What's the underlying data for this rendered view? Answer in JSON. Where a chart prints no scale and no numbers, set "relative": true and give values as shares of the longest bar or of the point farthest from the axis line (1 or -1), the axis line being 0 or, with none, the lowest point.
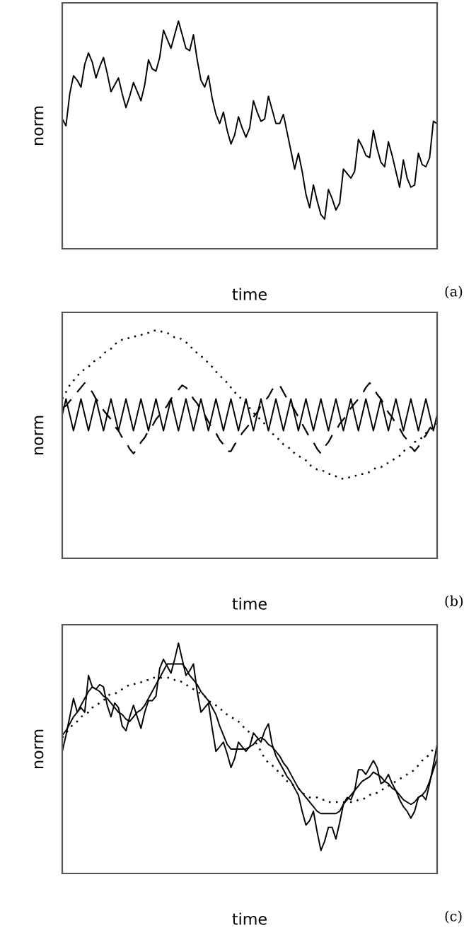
{
  "chart_data": [
    {
      "type": "line",
      "relative": true,
      "xlabel": "time",
      "ylabel": "norm",
      "annotations": [
        "(a)"
      ],
      "categories": [
        null,
        null,
        null,
        null,
        null,
        null,
        null,
        null,
        null,
        null,
        null,
        null,
        null,
        null,
        null,
        null,
        null,
        null,
        null,
        null,
        null,
        null,
        null,
        null,
        null,
        null,
        null,
        null,
        null,
        null,
        null,
        null,
        null,
        null,
        null,
        null,
        null,
        null,
        null,
        null,
        null,
        null,
        null,
        null,
        null,
        null,
        null,
        null,
        null,
        null,
        null,
        null,
        null,
        null,
        null,
        null,
        null,
        null,
        null,
        null,
        null,
        null,
        null,
        null,
        null,
        null,
        null,
        null,
        null,
        null,
        null,
        null,
        null,
        null,
        null,
        null,
        null,
        null,
        null,
        null,
        null,
        null,
        null,
        null,
        null,
        null,
        null,
        null,
        null,
        null,
        null,
        null,
        null,
        null,
        null,
        null,
        null,
        null,
        null,
        null,
        null
      ],
      "series": [
        {
          "color": "#000000",
          "line_style": "solid",
          "values": [
            0.57,
            0.54,
            0.68,
            0.76,
            0.74,
            0.71,
            0.81,
            0.86,
            0.82,
            0.75,
            0.8,
            0.84,
            0.77,
            0.69,
            0.72,
            0.75,
            0.68,
            0.62,
            0.67,
            0.73,
            0.69,
            0.65,
            0.72,
            0.83,
            0.79,
            0.78,
            0.84,
            0.96,
            0.92,
            0.88,
            0.94,
            1.0,
            0.94,
            0.88,
            0.87,
            0.94,
            0.83,
            0.74,
            0.71,
            0.76,
            0.66,
            0.59,
            0.55,
            0.6,
            0.52,
            0.46,
            0.5,
            0.58,
            0.53,
            0.49,
            0.53,
            0.65,
            0.6,
            0.56,
            0.57,
            0.67,
            0.61,
            0.55,
            0.55,
            0.59,
            0.51,
            0.43,
            0.35,
            0.42,
            0.34,
            0.24,
            0.18,
            0.28,
            0.21,
            0.15,
            0.13,
            0.26,
            0.22,
            0.17,
            0.2,
            0.35,
            0.33,
            0.31,
            0.34,
            0.48,
            0.45,
            0.41,
            0.4,
            0.52,
            0.44,
            0.38,
            0.36,
            0.47,
            0.41,
            0.34,
            0.27,
            0.39,
            0.31,
            0.27,
            0.28,
            0.42,
            0.37,
            0.36,
            0.4,
            0.56,
            0.55
          ]
        }
      ]
    },
    {
      "type": "line",
      "relative": true,
      "xlabel": "time",
      "ylabel": "norm",
      "annotations": [
        "(b)"
      ],
      "categories": [
        null,
        null,
        null,
        null,
        null,
        null,
        null,
        null,
        null,
        null,
        null,
        null,
        null,
        null,
        null,
        null,
        null,
        null,
        null,
        null,
        null,
        null,
        null,
        null,
        null,
        null,
        null,
        null,
        null,
        null,
        null,
        null,
        null,
        null,
        null,
        null,
        null,
        null,
        null,
        null,
        null,
        null,
        null,
        null,
        null,
        null,
        null,
        null,
        null,
        null,
        null,
        null,
        null,
        null,
        null,
        null,
        null,
        null,
        null,
        null,
        null,
        null,
        null,
        null,
        null,
        null,
        null,
        null,
        null,
        null,
        null,
        null,
        null,
        null,
        null,
        null,
        null,
        null,
        null,
        null,
        null,
        null,
        null,
        null,
        null,
        null,
        null,
        null,
        null,
        null,
        null,
        null,
        null,
        null,
        null,
        null,
        null,
        null,
        null,
        null,
        null
      ],
      "series": [
        {
          "color": "#000000",
          "line_style": "solid",
          "values": [
            0.63,
            0.7,
            0.63,
            0.56,
            0.63,
            0.7,
            0.63,
            0.56,
            0.63,
            0.7,
            0.63,
            0.56,
            0.63,
            0.7,
            0.63,
            0.56,
            0.63,
            0.7,
            0.63,
            0.56,
            0.63,
            0.7,
            0.63,
            0.56,
            0.63,
            0.7,
            0.63,
            0.56,
            0.63,
            0.7,
            0.63,
            0.56,
            0.63,
            0.7,
            0.63,
            0.56,
            0.63,
            0.7,
            0.63,
            0.56,
            0.63,
            0.7,
            0.63,
            0.56,
            0.63,
            0.7,
            0.63,
            0.56,
            0.63,
            0.7,
            0.63,
            0.56,
            0.63,
            0.7,
            0.63,
            0.56,
            0.63,
            0.7,
            0.63,
            0.56,
            0.63,
            0.7,
            0.63,
            0.56,
            0.63,
            0.7,
            0.63,
            0.56,
            0.63,
            0.7,
            0.63,
            0.56,
            0.63,
            0.7,
            0.63,
            0.56,
            0.63,
            0.7,
            0.63,
            0.56,
            0.63,
            0.7,
            0.63,
            0.56,
            0.63,
            0.7,
            0.63,
            0.56,
            0.63,
            0.7,
            0.63,
            0.56,
            0.63,
            0.7,
            0.63,
            0.56,
            0.63,
            0.7,
            0.63,
            0.56,
            0.63
          ]
        },
        {
          "color": "#000000",
          "line_style": "dashed",
          "values": [
            0.66,
            0.67,
            0.69,
            0.71,
            0.73,
            0.75,
            0.77,
            0.75,
            0.73,
            0.7,
            0.68,
            0.65,
            0.63,
            0.61,
            0.58,
            0.56,
            0.53,
            0.51,
            0.48,
            0.46,
            0.48,
            0.51,
            0.53,
            0.56,
            0.58,
            0.61,
            0.63,
            0.65,
            0.67,
            0.7,
            0.72,
            0.74,
            0.76,
            0.75,
            0.73,
            0.7,
            0.68,
            0.65,
            0.63,
            0.6,
            0.57,
            0.55,
            0.52,
            0.5,
            0.47,
            0.47,
            0.5,
            0.52,
            0.55,
            0.57,
            0.59,
            0.62,
            0.64,
            0.67,
            0.69,
            0.71,
            0.74,
            0.76,
            0.76,
            0.73,
            0.7,
            0.68,
            0.65,
            0.62,
            0.59,
            0.56,
            0.53,
            0.51,
            0.48,
            0.46,
            0.49,
            0.51,
            0.54,
            0.56,
            0.59,
            0.61,
            0.63,
            0.66,
            0.68,
            0.7,
            0.72,
            0.75,
            0.77,
            0.75,
            0.72,
            0.7,
            0.67,
            0.64,
            0.62,
            0.59,
            0.57,
            0.54,
            0.52,
            0.49,
            0.47,
            0.49,
            0.52,
            0.54,
            0.57,
            0.59,
            0.62
          ]
        },
        {
          "color": "#000000",
          "line_style": "dotted",
          "values": [
            0.7,
            0.73,
            0.76,
            0.78,
            0.8,
            0.82,
            0.83,
            0.84,
            0.86,
            0.87,
            0.88,
            0.9,
            0.91,
            0.92,
            0.94,
            0.95,
            0.96,
            0.96,
            0.97,
            0.97,
            0.98,
            0.98,
            0.99,
            0.99,
            1.0,
            1.0,
            1.0,
            0.99,
            0.99,
            0.98,
            0.97,
            0.97,
            0.96,
            0.95,
            0.93,
            0.92,
            0.9,
            0.89,
            0.87,
            0.86,
            0.84,
            0.82,
            0.8,
            0.79,
            0.77,
            0.75,
            0.73,
            0.71,
            0.7,
            0.68,
            0.66,
            0.64,
            0.62,
            0.61,
            0.59,
            0.57,
            0.55,
            0.53,
            0.52,
            0.5,
            0.49,
            0.48,
            0.46,
            0.45,
            0.44,
            0.43,
            0.41,
            0.4,
            0.39,
            0.39,
            0.38,
            0.37,
            0.37,
            0.36,
            0.35,
            0.35,
            0.35,
            0.36,
            0.36,
            0.37,
            0.37,
            0.37,
            0.38,
            0.39,
            0.4,
            0.4,
            0.41,
            0.42,
            0.43,
            0.44,
            0.45,
            0.47,
            0.48,
            0.49,
            0.51,
            0.52,
            0.53,
            0.55,
            0.56,
            0.58,
            0.59
          ]
        }
      ]
    },
    {
      "type": "line",
      "relative": true,
      "xlabel": "time",
      "ylabel": "norm",
      "annotations": [
        "(c)"
      ],
      "categories": [
        null,
        null,
        null,
        null,
        null,
        null,
        null,
        null,
        null,
        null,
        null,
        null,
        null,
        null,
        null,
        null,
        null,
        null,
        null,
        null,
        null,
        null,
        null,
        null,
        null,
        null,
        null,
        null,
        null,
        null,
        null,
        null,
        null,
        null,
        null,
        null,
        null,
        null,
        null,
        null,
        null,
        null,
        null,
        null,
        null,
        null,
        null,
        null,
        null,
        null,
        null,
        null,
        null,
        null,
        null,
        null,
        null,
        null,
        null,
        null,
        null,
        null,
        null,
        null,
        null,
        null,
        null,
        null,
        null,
        null,
        null,
        null,
        null,
        null,
        null,
        null,
        null,
        null,
        null,
        null,
        null,
        null,
        null,
        null,
        null,
        null,
        null,
        null,
        null,
        null,
        null,
        null,
        null,
        null,
        null,
        null,
        null,
        null,
        null,
        null,
        null
      ],
      "series": [
        {
          "color": "#000000",
          "line_style": "solid",
          "values": [
            0.53,
            0.6,
            0.68,
            0.76,
            0.7,
            0.72,
            0.7,
            0.86,
            0.81,
            0.8,
            0.82,
            0.81,
            0.73,
            0.68,
            0.74,
            0.72,
            0.64,
            0.62,
            0.68,
            0.73,
            0.68,
            0.63,
            0.7,
            0.75,
            0.75,
            0.77,
            0.89,
            0.93,
            0.9,
            0.87,
            0.93,
            1.0,
            0.93,
            0.86,
            0.88,
            0.91,
            0.79,
            0.7,
            0.72,
            0.74,
            0.63,
            0.53,
            0.55,
            0.57,
            0.52,
            0.46,
            0.5,
            0.57,
            0.55,
            0.53,
            0.55,
            0.61,
            0.59,
            0.57,
            0.62,
            0.65,
            0.56,
            0.51,
            0.48,
            0.45,
            0.42,
            0.4,
            0.37,
            0.34,
            0.27,
            0.21,
            0.23,
            0.27,
            0.18,
            0.1,
            0.14,
            0.2,
            0.2,
            0.15,
            0.22,
            0.3,
            0.33,
            0.32,
            0.36,
            0.45,
            0.45,
            0.43,
            0.46,
            0.49,
            0.46,
            0.39,
            0.4,
            0.43,
            0.39,
            0.36,
            0.32,
            0.29,
            0.27,
            0.24,
            0.27,
            0.33,
            0.34,
            0.32,
            0.39,
            0.47,
            0.56
          ]
        },
        {
          "color": "#000000",
          "line_style": "solid",
          "values": [
            0.6,
            0.62,
            0.65,
            0.68,
            0.7,
            0.73,
            0.76,
            0.79,
            0.81,
            0.8,
            0.79,
            0.77,
            0.76,
            0.74,
            0.72,
            0.7,
            0.69,
            0.67,
            0.66,
            0.68,
            0.7,
            0.71,
            0.73,
            0.76,
            0.79,
            0.82,
            0.85,
            0.88,
            0.91,
            0.91,
            0.91,
            0.91,
            0.91,
            0.89,
            0.86,
            0.84,
            0.82,
            0.79,
            0.77,
            0.75,
            0.72,
            0.69,
            0.64,
            0.6,
            0.56,
            0.54,
            0.54,
            0.54,
            0.54,
            0.54,
            0.55,
            0.56,
            0.58,
            0.59,
            0.58,
            0.56,
            0.55,
            0.53,
            0.51,
            0.48,
            0.46,
            0.43,
            0.4,
            0.37,
            0.35,
            0.33,
            0.31,
            0.29,
            0.27,
            0.26,
            0.26,
            0.26,
            0.26,
            0.26,
            0.27,
            0.3,
            0.32,
            0.34,
            0.36,
            0.38,
            0.4,
            0.41,
            0.42,
            0.44,
            0.43,
            0.42,
            0.4,
            0.39,
            0.37,
            0.36,
            0.34,
            0.32,
            0.31,
            0.3,
            0.31,
            0.33,
            0.34,
            0.36,
            0.4,
            0.45,
            0.5
          ]
        },
        {
          "color": "#000000",
          "line_style": "dotted",
          "values": [
            0.59,
            0.61,
            0.63,
            0.65,
            0.66,
            0.68,
            0.69,
            0.7,
            0.72,
            0.73,
            0.74,
            0.75,
            0.77,
            0.78,
            0.78,
            0.79,
            0.8,
            0.81,
            0.82,
            0.82,
            0.83,
            0.83,
            0.84,
            0.84,
            0.85,
            0.85,
            0.85,
            0.85,
            0.85,
            0.85,
            0.84,
            0.84,
            0.83,
            0.82,
            0.81,
            0.8,
            0.79,
            0.78,
            0.77,
            0.75,
            0.74,
            0.73,
            0.72,
            0.7,
            0.69,
            0.68,
            0.67,
            0.66,
            0.64,
            0.63,
            0.61,
            0.58,
            0.56,
            0.53,
            0.5,
            0.48,
            0.47,
            0.45,
            0.44,
            0.42,
            0.4,
            0.39,
            0.38,
            0.37,
            0.35,
            0.34,
            0.33,
            0.33,
            0.33,
            0.32,
            0.32,
            0.31,
            0.31,
            0.31,
            0.31,
            0.31,
            0.31,
            0.31,
            0.31,
            0.32,
            0.32,
            0.33,
            0.34,
            0.35,
            0.35,
            0.36,
            0.37,
            0.38,
            0.39,
            0.4,
            0.41,
            0.42,
            0.43,
            0.44,
            0.45,
            0.47,
            0.49,
            0.5,
            0.52,
            0.54,
            0.55
          ]
        }
      ]
    }
  ]
}
